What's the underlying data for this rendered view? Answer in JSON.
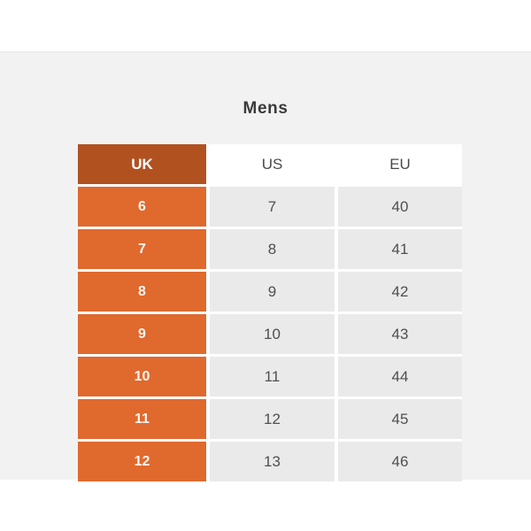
{
  "title": "Mens",
  "table": {
    "columns": [
      "UK",
      "US",
      "EU"
    ],
    "rows": [
      [
        "6",
        "7",
        "40"
      ],
      [
        "7",
        "8",
        "41"
      ],
      [
        "8",
        "9",
        "42"
      ],
      [
        "9",
        "10",
        "43"
      ],
      [
        "10",
        "11",
        "44"
      ],
      [
        "11",
        "12",
        "45"
      ],
      [
        "12",
        "13",
        "46"
      ]
    ]
  },
  "colors": {
    "page_background": "#ffffff",
    "panel_background": "#f2f2f2",
    "uk_header_background": "#b15120",
    "uk_row_background": "#e0692e",
    "gray_cell_background": "#eaeaea",
    "header_text": "#4a4a4a",
    "number_text": "#4f4f4f",
    "title_text": "#3a3a3a",
    "uk_text": "#ffffff"
  }
}
